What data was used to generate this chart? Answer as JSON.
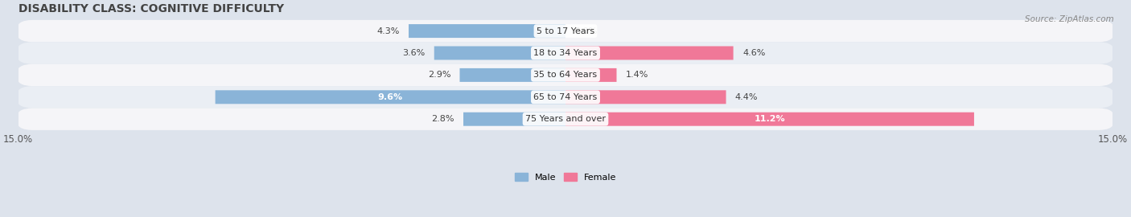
{
  "title": "DISABILITY CLASS: COGNITIVE DIFFICULTY",
  "source": "Source: ZipAtlas.com",
  "categories": [
    "5 to 17 Years",
    "18 to 34 Years",
    "35 to 64 Years",
    "65 to 74 Years",
    "75 Years and over"
  ],
  "male_values": [
    4.3,
    3.6,
    2.9,
    9.6,
    2.8
  ],
  "female_values": [
    0.0,
    4.6,
    1.4,
    4.4,
    11.2
  ],
  "max_val": 15.0,
  "male_color": "#8ab4d8",
  "female_color": "#f07898",
  "male_label": "Male",
  "female_label": "Female",
  "row_bg_odd": "#eaeef4",
  "row_bg_even": "#f5f5f8",
  "outer_bg": "#dde3ec",
  "title_fontsize": 10,
  "label_fontsize": 8,
  "axis_label_fontsize": 8.5
}
